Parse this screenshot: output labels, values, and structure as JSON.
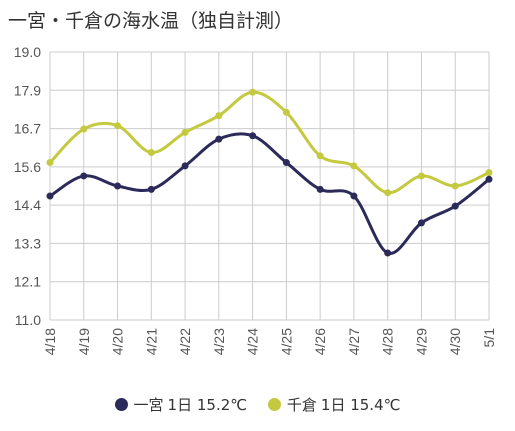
{
  "chart_data": {
    "type": "line",
    "title": "一宮・千倉の海水温（独自計測）",
    "categories": [
      "4/18",
      "4/19",
      "4/20",
      "4/21",
      "4/22",
      "4/23",
      "4/24",
      "4/25",
      "4/26",
      "4/27",
      "4/28",
      "4/29",
      "4/30",
      "5/1"
    ],
    "ylim": [
      11.0,
      19.0
    ],
    "yticks": [
      "19.0",
      "17.9",
      "16.7",
      "15.6",
      "14.4",
      "13.3",
      "12.1",
      "11.0"
    ],
    "grid": true,
    "legend_position": "bottom",
    "series": [
      {
        "name": "一宮",
        "latest_label": "1日 15.2℃",
        "color": "#2b2a59",
        "values": [
          14.7,
          15.3,
          15.0,
          14.9,
          15.6,
          16.4,
          16.5,
          15.7,
          14.9,
          14.7,
          13.0,
          13.9,
          14.4,
          15.2
        ]
      },
      {
        "name": "千倉",
        "latest_label": "1日 15.4℃",
        "color": "#c4c93f",
        "values": [
          15.7,
          16.7,
          16.8,
          16.0,
          16.6,
          17.1,
          17.8,
          17.2,
          15.9,
          15.6,
          14.8,
          15.3,
          15.0,
          15.4
        ]
      }
    ]
  }
}
